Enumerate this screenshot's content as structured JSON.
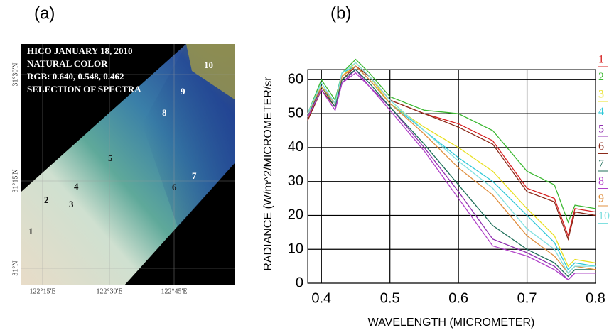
{
  "image_panel": {
    "label": "(a)",
    "caption_lines": [
      "HICO JANUARY 18, 2010",
      "NATURAL COLOR",
      "RGB: 0.640, 0.548, 0.462",
      "SELECTION OF SPECTRA"
    ],
    "point_labels": [
      "1",
      "2",
      "3",
      "4",
      "5",
      "6",
      "7",
      "8",
      "9",
      "10"
    ],
    "lat_labels": [
      "31°30'N",
      "31°15'N",
      "31°N"
    ],
    "lon_labels": [
      "122°15'E",
      "122°30'E",
      "122°45'E"
    ]
  },
  "chart_data": {
    "type": "line",
    "title": "(b)",
    "x_label": "WAVELENGTH (MICROMETER)",
    "y_label": "RADIANCE (W/m^2/MICROMETER/sr",
    "x": [
      0.38,
      0.4,
      0.42,
      0.43,
      0.45,
      0.47,
      0.5,
      0.55,
      0.6,
      0.65,
      0.7,
      0.74,
      0.76,
      0.77,
      0.8
    ],
    "series": [
      {
        "name": "1",
        "color": "#d62020",
        "values": [
          48,
          58,
          53,
          61,
          64,
          61,
          54,
          50,
          47,
          42,
          28,
          25,
          14,
          22,
          21
        ]
      },
      {
        "name": "2",
        "color": "#3cb832",
        "values": [
          50,
          60,
          54,
          62,
          66,
          62,
          55,
          51,
          50,
          45,
          33,
          29,
          18,
          23,
          22
        ]
      },
      {
        "name": "3",
        "color": "#e8e020",
        "values": [
          49,
          58,
          52,
          61,
          65,
          61,
          53,
          46,
          40,
          33,
          22,
          14,
          5,
          7,
          6
        ]
      },
      {
        "name": "4",
        "color": "#30c8d8",
        "values": [
          50,
          59,
          53,
          62,
          64,
          60,
          53,
          45,
          37,
          30,
          20,
          12,
          4,
          6,
          5
        ]
      },
      {
        "name": "5",
        "color": "#9030b0",
        "values": [
          49,
          57,
          51,
          59,
          63,
          58,
          52,
          40,
          27,
          13,
          9,
          5,
          1,
          3,
          3
        ]
      },
      {
        "name": "6",
        "color": "#8b2a1a",
        "values": [
          48,
          57,
          52,
          60,
          64,
          61,
          54,
          50,
          46,
          41,
          27,
          24,
          13,
          21,
          20
        ]
      },
      {
        "name": "7",
        "color": "#1f6f5a",
        "values": [
          49,
          58,
          52,
          60,
          63,
          59,
          52,
          41,
          29,
          17,
          10,
          6,
          2,
          4,
          4
        ]
      },
      {
        "name": "8",
        "color": "#b040c8",
        "values": [
          49,
          57,
          51,
          59,
          62,
          58,
          51,
          39,
          25,
          11,
          8,
          4,
          1,
          3,
          3
        ]
      },
      {
        "name": "9",
        "color": "#e09040",
        "values": [
          50,
          58,
          53,
          61,
          64,
          60,
          53,
          44,
          34,
          26,
          14,
          8,
          3,
          5,
          4
        ]
      },
      {
        "name": "10",
        "color": "#80e0e0",
        "values": [
          50,
          59,
          53,
          62,
          65,
          61,
          54,
          45,
          36,
          28,
          16,
          10,
          3,
          5,
          5
        ]
      }
    ],
    "xlim": [
      0.38,
      0.8
    ],
    "xticks": [
      0.4,
      0.5,
      0.6,
      0.7,
      0.8
    ],
    "ylim": [
      0,
      63
    ],
    "yticks": [
      0,
      10,
      20,
      30,
      40,
      50,
      60
    ],
    "grid": true
  }
}
